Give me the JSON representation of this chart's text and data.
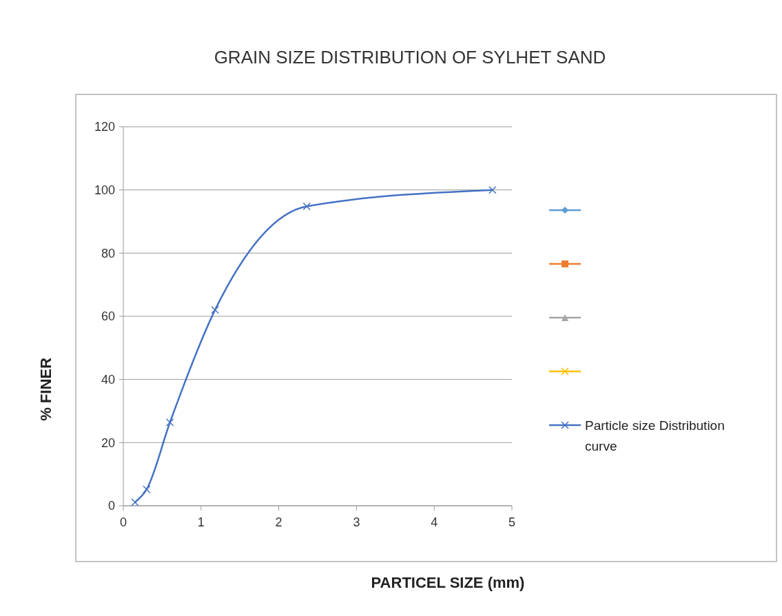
{
  "chart_data": {
    "type": "line",
    "title": "GRAIN SIZE DISTRIBUTION OF SYLHET SAND",
    "xlabel": "PARTICEL SIZE (mm)",
    "ylabel": "% FINER",
    "x": [
      0.15,
      0.3,
      0.6,
      1.18,
      2.36,
      4.75
    ],
    "series": [
      {
        "name": "Particle size Distribution curve",
        "color": "#4472c4",
        "marker": "cross",
        "values": [
          1.1,
          5.2,
          26.4,
          62,
          94.8,
          100
        ]
      }
    ],
    "xlim": [
      0,
      5
    ],
    "xticks": [
      0,
      1,
      2,
      3,
      4,
      5
    ],
    "ylim": [
      0,
      120
    ],
    "yticks": [
      0,
      20,
      40,
      60,
      80,
      100,
      120
    ],
    "grid": "y",
    "legend": "right"
  }
}
